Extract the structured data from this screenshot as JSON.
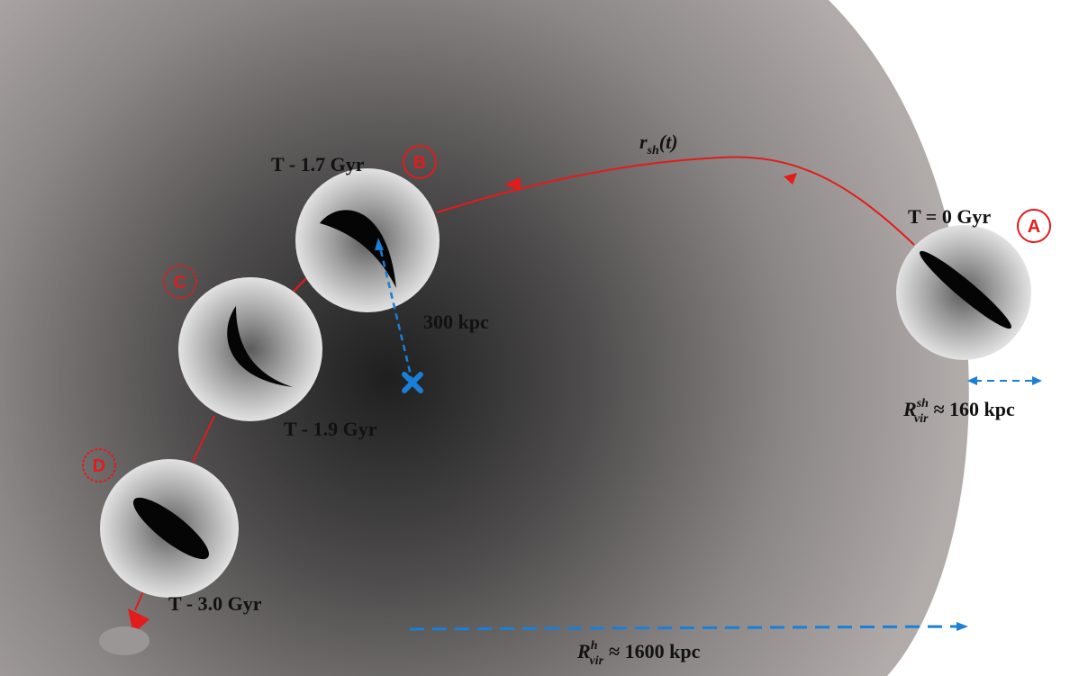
{
  "colors": {
    "orbit": "#e21b1b",
    "arrow_blue": "#1a7fd6",
    "halo_edge": "#b3adab",
    "halo_center": "#1e1e1e"
  },
  "labels": {
    "r_sh": {
      "main": "r",
      "sub": "sh",
      "rest": "(t)"
    },
    "time_A": "T = 0 Gyr",
    "time_B": "T - 1.7 Gyr",
    "time_C": "T - 1.9 Gyr",
    "time_D": "T - 3.0 Gyr",
    "dist_300": "300 kpc",
    "rvir_sh": {
      "main": "R",
      "sup": "sh",
      "sub": "vir",
      "rest": "≈ 160 kpc"
    },
    "rvir_h": {
      "main": "R",
      "sup": "h",
      "sub": "vir",
      "rest": "≈ 1600 kpc"
    }
  },
  "markers": {
    "A": "A",
    "B": "B",
    "C": "C",
    "D": "D"
  }
}
